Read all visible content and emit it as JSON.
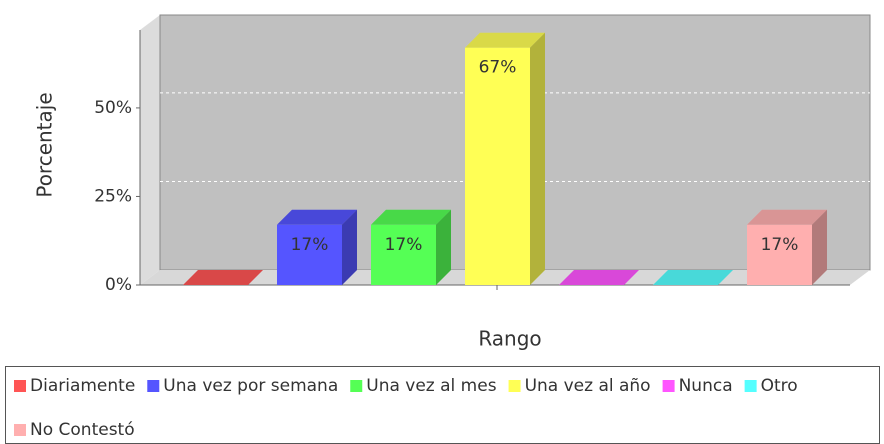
{
  "chart_data": {
    "type": "bar3d",
    "categories": [
      null
    ],
    "y_label": "Porcentaje",
    "x_label": "Rango",
    "ylim": [
      0,
      72
    ],
    "yticks": [
      {
        "value": 0,
        "label": "0%"
      },
      {
        "value": 25,
        "label": "25%"
      },
      {
        "value": 50,
        "label": "50%"
      }
    ],
    "grid": true,
    "legend": "bottom",
    "series": [
      {
        "name": "Diariamente",
        "color": "#ff5555",
        "values": [
          0
        ],
        "value_labels": [
          null
        ]
      },
      {
        "name": "Una vez por semana",
        "color": "#5555ff",
        "values": [
          17
        ],
        "value_labels": [
          "17%"
        ]
      },
      {
        "name": "Una vez al mes",
        "color": "#55ff55",
        "values": [
          17
        ],
        "value_labels": [
          "17%"
        ]
      },
      {
        "name": "Una vez al año",
        "color": "#ffff55",
        "values": [
          67
        ],
        "value_labels": [
          "67%"
        ]
      },
      {
        "name": "Nunca",
        "color": "#ff55ff",
        "values": [
          0
        ],
        "value_labels": [
          null
        ]
      },
      {
        "name": "Otro",
        "color": "#55ffff",
        "values": [
          0
        ],
        "value_labels": [
          null
        ]
      },
      {
        "name": "No Contestó",
        "color": "#ffafaf",
        "values": [
          17
        ],
        "value_labels": [
          "17%"
        ]
      }
    ]
  }
}
